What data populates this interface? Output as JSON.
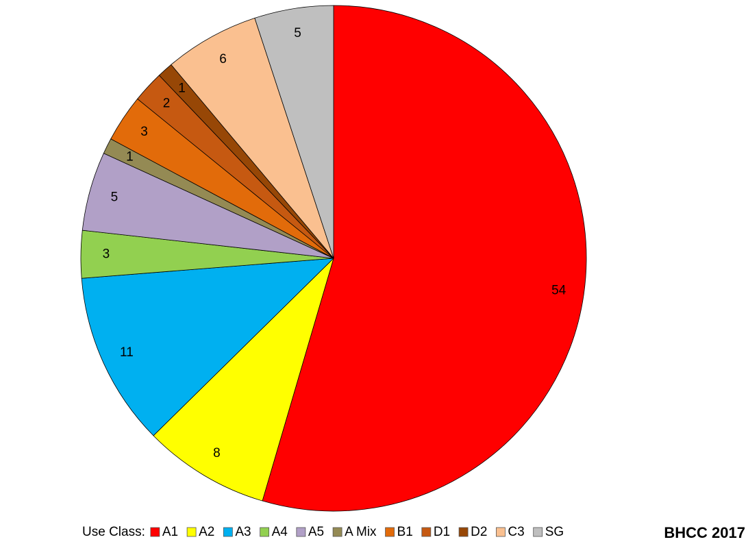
{
  "chart_data": {
    "type": "pie",
    "categories": [
      "A1",
      "A2",
      "A3",
      "A4",
      "A5",
      "A Mix",
      "B1",
      "D1",
      "D2",
      "C3",
      "SG"
    ],
    "values": [
      54,
      8,
      11,
      3,
      5,
      1,
      3,
      2,
      1,
      6,
      5
    ],
    "colors": [
      "#ff0000",
      "#ffff00",
      "#00b0f0",
      "#92d050",
      "#b1a0c7",
      "#948a54",
      "#e26b0a",
      "#c65911",
      "#974706",
      "#fac090",
      "#bfbfbf"
    ],
    "legend_title": "Use Class:",
    "legend_position": "bottom",
    "annotation": "BHCC 2017"
  }
}
